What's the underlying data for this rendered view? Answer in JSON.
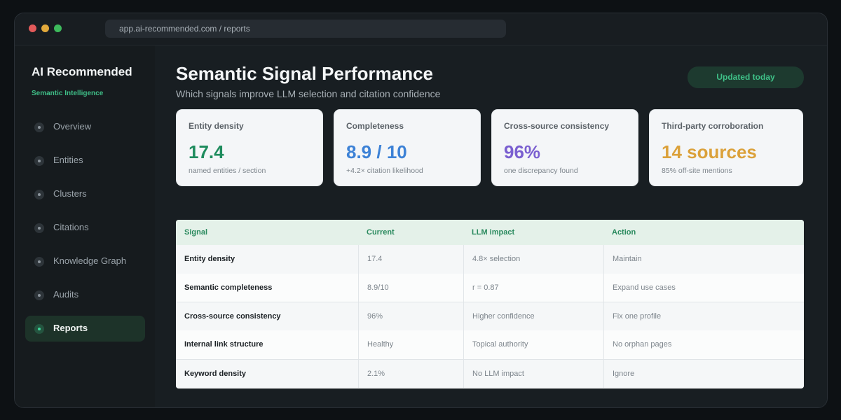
{
  "browser": {
    "url": "app.ai-recommended.com / reports"
  },
  "sidebar": {
    "brand": "AI Recommended",
    "subtitle": "Semantic Intelligence",
    "items": [
      {
        "label": "Overview"
      },
      {
        "label": "Entities"
      },
      {
        "label": "Clusters"
      },
      {
        "label": "Citations"
      },
      {
        "label": "Knowledge Graph"
      },
      {
        "label": "Audits"
      },
      {
        "label": "Reports",
        "active": true
      }
    ]
  },
  "header": {
    "title": "Semantic Signal Performance",
    "subtitle": "Which signals improve LLM selection and citation confidence",
    "badge": "Updated today"
  },
  "cards": [
    {
      "label": "Entity density",
      "value": "17.4",
      "note": "named entities / section",
      "color": "#1f8c5e"
    },
    {
      "label": "Completeness",
      "value": "8.9 / 10",
      "note": "+4.2× citation likelihood",
      "color": "#3d82d6"
    },
    {
      "label": "Cross-source consistency",
      "value": "96%",
      "note": "one discrepancy found",
      "color": "#7a5fd0"
    },
    {
      "label": "Third-party corroboration",
      "value": "14 sources",
      "note": "85% off-site mentions",
      "color": "#dba13a"
    }
  ],
  "table": {
    "headers": [
      "Signal",
      "Current",
      "LLM impact",
      "Action"
    ],
    "rows": [
      [
        "Entity density",
        "17.4",
        "4.8× selection",
        "Maintain"
      ],
      [
        "Semantic completeness",
        "8.9/10",
        "r = 0.87",
        "Expand use cases"
      ],
      [
        "Cross-source consistency",
        "96%",
        "Higher confidence",
        "Fix one profile"
      ],
      [
        "Internal link structure",
        "Healthy",
        "Topical authority",
        "No orphan pages"
      ],
      [
        "Keyword density",
        "2.1%",
        "No LLM impact",
        "Ignore"
      ]
    ]
  }
}
